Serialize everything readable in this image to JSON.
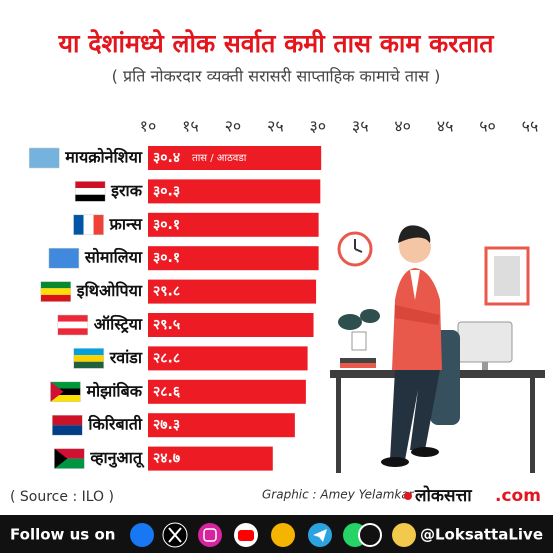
{
  "chart_data": {
    "type": "bar",
    "orientation": "horizontal",
    "title": "या देशांमध्ये लोक सर्वात कमी तास काम करतात",
    "subtitle": "( प्रति नोकरदार व्यक्ती सरासरी साप्ताहिक कामाचे तास )",
    "annotation": "तास / आठवडा",
    "categories": [
      "मायक्रोनेशिया",
      "इराक",
      "फ्रान्स",
      "सोमालिया",
      "इथिओपिया",
      "ऑस्ट्रिया",
      "रवांडा",
      "मोझांबिक",
      "किरिबाती",
      "व्हानुआतू"
    ],
    "values": [
      30.4,
      30.3,
      30.1,
      30.1,
      29.8,
      29.5,
      28.8,
      28.6,
      27.3,
      24.7
    ],
    "value_labels": [
      "३०.४",
      "३०.३",
      "३०.१",
      "३०.१",
      "२९.८",
      "२९.५",
      "२८.८",
      "२८.६",
      "२७.३",
      "२४.७"
    ],
    "color": "#ed1c24",
    "xlim": [
      10,
      55
    ],
    "xticks": [
      {
        "value": 10,
        "label": "१०"
      },
      {
        "value": 15,
        "label": "१५"
      },
      {
        "value": 20,
        "label": "२०"
      },
      {
        "value": 25,
        "label": "२५"
      },
      {
        "value": 30,
        "label": "३०"
      },
      {
        "value": 35,
        "label": "३५"
      },
      {
        "value": 40,
        "label": "४०"
      },
      {
        "value": 45,
        "label": "४५"
      },
      {
        "value": 50,
        "label": "५०"
      },
      {
        "value": 55,
        "label": "५५"
      }
    ],
    "source": "( Source : ILO )",
    "credit": "Graphic : Amey Yelamkar"
  },
  "logo": {
    "name": "लोकसत्ता",
    "suffix": ".com"
  },
  "footer": {
    "follow": "Follow us on",
    "handle": "@LoksattaLive"
  }
}
